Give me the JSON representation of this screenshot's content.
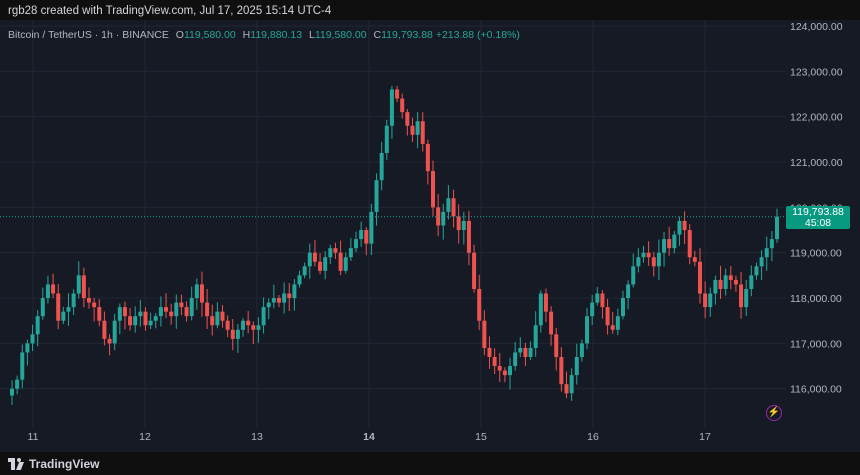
{
  "header": {
    "credit": "rgb28 created with TradingView.com, Jul 17, 2025 15:14 UTC-4"
  },
  "legend": {
    "symbol": "Bitcoin / TetherUS · 1h · BINANCE",
    "o_label": "O",
    "o_value": "119,580.00",
    "h_label": "H",
    "h_value": "119,880.13",
    "l_label": "L",
    "l_value": "119,580.00",
    "c_label": "C",
    "c_value": "119,793.88",
    "change": "+213.88 (+0.18%)"
  },
  "price_tag": {
    "price": "119,793.88",
    "countdown": "45:08"
  },
  "footer": {
    "brand": "TradingView"
  },
  "icons": {
    "alert": "lightning-bolt-icon",
    "logo": "tradingview-logo-icon"
  },
  "colors": {
    "up": "#26a69a",
    "down": "#ef5350",
    "background": "#161a25",
    "grid": "#232733",
    "alert": "#9c27b0"
  },
  "chart_data": {
    "type": "candlestick",
    "ylim": [
      115200,
      124000
    ],
    "y_ticks": [
      "124,000.00",
      "123,000.00",
      "122,000.00",
      "121,000.00",
      "120,000.00",
      "119,000.00",
      "118,000.00",
      "117,000.00",
      "116,000.00"
    ],
    "x_ticks": [
      "11",
      "12",
      "13",
      "14",
      "15",
      "16",
      "17"
    ],
    "current_price": 119793.88,
    "closes": [
      116000,
      116200,
      116800,
      117000,
      117200,
      117600,
      118000,
      118300,
      118100,
      117500,
      117700,
      117800,
      118100,
      118500,
      118000,
      117900,
      117800,
      117500,
      117100,
      117000,
      117500,
      117800,
      117600,
      117400,
      117600,
      117700,
      117400,
      117500,
      117600,
      117800,
      117700,
      117600,
      117900,
      117800,
      117600,
      118000,
      118300,
      117900,
      117600,
      117400,
      117700,
      117500,
      117300,
      117100,
      117300,
      117500,
      117400,
      117300,
      117400,
      117800,
      117900,
      118000,
      117900,
      118100,
      118000,
      118300,
      118500,
      118700,
      119000,
      118800,
      118600,
      118900,
      119100,
      119000,
      118600,
      118900,
      119100,
      119300,
      119500,
      119200,
      119900,
      120600,
      121200,
      121800,
      122600,
      122400,
      122100,
      121800,
      121600,
      121900,
      121400,
      120800,
      120000,
      119600,
      119900,
      120200,
      119800,
      119500,
      119700,
      119000,
      118200,
      117500,
      116900,
      116700,
      116500,
      116400,
      116300,
      116500,
      116800,
      116900,
      116700,
      116900,
      117400,
      118100,
      117700,
      117200,
      116700,
      116100,
      115900,
      116300,
      116700,
      117000,
      117600,
      117900,
      118100,
      117800,
      117400,
      117300,
      117600,
      118000,
      118300,
      118700,
      118900,
      119000,
      118900,
      118700,
      119000,
      119300,
      119100,
      119400,
      119700,
      119500,
      118900,
      118800,
      118100,
      117800,
      118100,
      118400,
      118200,
      118500,
      118400,
      118300,
      117800,
      118200,
      118500,
      118700,
      118900,
      119100,
      119300,
      119793.88
    ]
  }
}
